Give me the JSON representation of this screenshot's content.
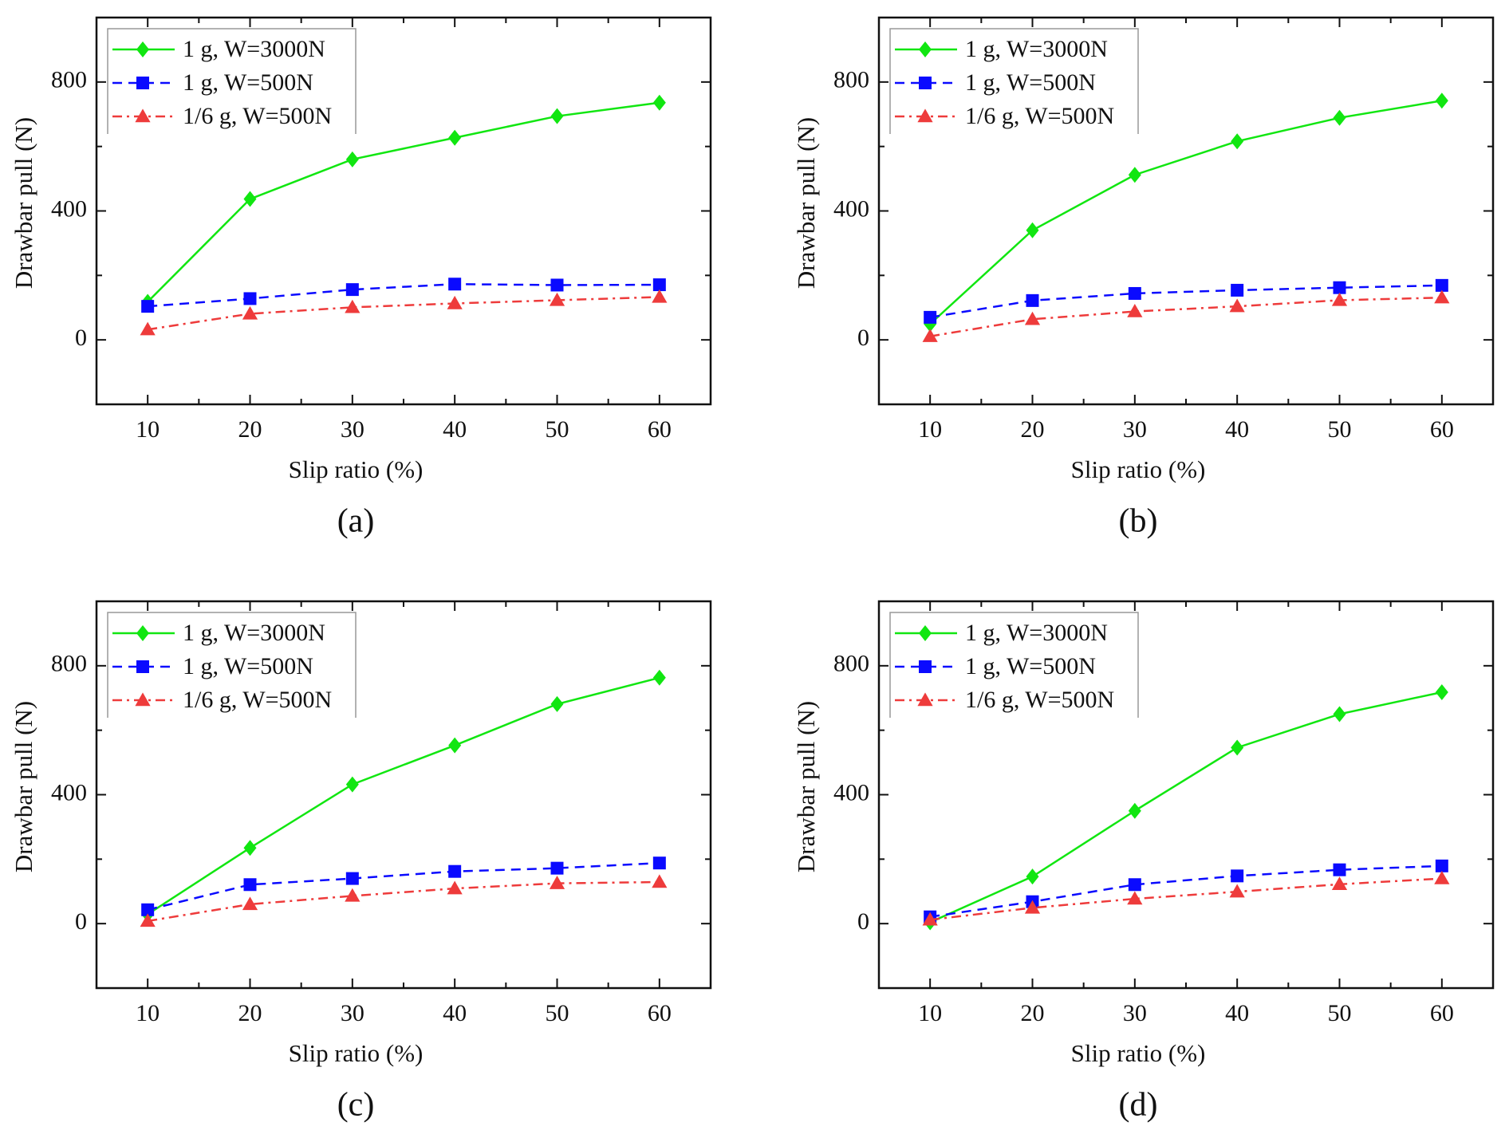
{
  "figure": {
    "description": "Drawbar pull versus slip ratio, four panels (a)-(d)"
  },
  "chart_data": [
    {
      "type": "line",
      "panel_label": "(a)",
      "xlabel": "Slip ratio (%)",
      "ylabel": "Drawbar pull (N)",
      "xlim": [
        5,
        65
      ],
      "ylim": [
        -200,
        1000
      ],
      "x_ticks": [
        10,
        20,
        30,
        40,
        50,
        60
      ],
      "x_minor_ticks": [
        15,
        25,
        35,
        45,
        55
      ],
      "y_ticks": [
        0,
        400,
        800
      ],
      "y_minor_ticks": [
        -200,
        200,
        600
      ],
      "grid": false,
      "legend_position": "top-left",
      "x": [
        10,
        20,
        30,
        40,
        50,
        60
      ],
      "series": [
        {
          "name": "1 g, W=3000N",
          "color": "#11e611",
          "marker": "diamond",
          "linestyle": "solid",
          "values": [
            118,
            437,
            560,
            627,
            694,
            736
          ]
        },
        {
          "name": "1 g, W=500N",
          "color": "#0a0aff",
          "marker": "square",
          "linestyle": "dashed",
          "values": [
            104,
            128,
            156,
            173,
            170,
            171
          ]
        },
        {
          "name": "1/6 g, W=500N",
          "color": "#ee3b3b",
          "marker": "triangle",
          "linestyle": "dash-dot",
          "values": [
            32,
            81,
            101,
            113,
            123,
            133
          ]
        }
      ]
    },
    {
      "type": "line",
      "panel_label": "(b)",
      "xlabel": "Slip ratio (%)",
      "ylabel": "Drawbar pull (N)",
      "xlim": [
        5,
        65
      ],
      "ylim": [
        -200,
        1000
      ],
      "x_ticks": [
        10,
        20,
        30,
        40,
        50,
        60
      ],
      "x_minor_ticks": [
        15,
        25,
        35,
        45,
        55
      ],
      "y_ticks": [
        0,
        400,
        800
      ],
      "y_minor_ticks": [
        -200,
        200,
        600
      ],
      "grid": false,
      "legend_position": "top-left",
      "x": [
        10,
        20,
        30,
        40,
        50,
        60
      ],
      "series": [
        {
          "name": "1 g, W=3000N",
          "color": "#11e611",
          "marker": "diamond",
          "linestyle": "solid",
          "values": [
            49,
            340,
            512,
            616,
            689,
            742
          ]
        },
        {
          "name": "1 g, W=500N",
          "color": "#0a0aff",
          "marker": "square",
          "linestyle": "dashed",
          "values": [
            70,
            122,
            144,
            154,
            162,
            169
          ]
        },
        {
          "name": "1/6 g, W=500N",
          "color": "#ee3b3b",
          "marker": "triangle",
          "linestyle": "dash-dot",
          "values": [
            11,
            64,
            88,
            104,
            123,
            131
          ]
        }
      ]
    },
    {
      "type": "line",
      "panel_label": "(c)",
      "xlabel": "Slip ratio (%)",
      "ylabel": "Drawbar pull (N)",
      "xlim": [
        5,
        65
      ],
      "ylim": [
        -200,
        1000
      ],
      "x_ticks": [
        10,
        20,
        30,
        40,
        50,
        60
      ],
      "x_minor_ticks": [
        15,
        25,
        35,
        45,
        55
      ],
      "y_ticks": [
        0,
        400,
        800
      ],
      "y_minor_ticks": [
        -200,
        200,
        600
      ],
      "grid": false,
      "legend_position": "top-left",
      "x": [
        10,
        20,
        30,
        40,
        50,
        60
      ],
      "series": [
        {
          "name": "1 g, W=3000N",
          "color": "#11e611",
          "marker": "diamond",
          "linestyle": "solid",
          "values": [
            29,
            235,
            432,
            553,
            681,
            763
          ]
        },
        {
          "name": "1 g, W=500N",
          "color": "#0a0aff",
          "marker": "square",
          "linestyle": "dashed",
          "values": [
            43,
            121,
            140,
            162,
            172,
            188
          ]
        },
        {
          "name": "1/6 g, W=500N",
          "color": "#ee3b3b",
          "marker": "triangle",
          "linestyle": "dash-dot",
          "values": [
            8,
            60,
            86,
            109,
            125,
            129
          ]
        }
      ]
    },
    {
      "type": "line",
      "panel_label": "(d)",
      "xlabel": "Slip ratio (%)",
      "ylabel": "Drawbar pull (N)",
      "xlim": [
        5,
        65
      ],
      "ylim": [
        -200,
        1000
      ],
      "x_ticks": [
        10,
        20,
        30,
        40,
        50,
        60
      ],
      "x_minor_ticks": [
        15,
        25,
        35,
        45,
        55
      ],
      "y_ticks": [
        0,
        400,
        800
      ],
      "y_minor_ticks": [
        -200,
        200,
        600
      ],
      "grid": false,
      "legend_position": "top-left",
      "x": [
        10,
        20,
        30,
        40,
        50,
        60
      ],
      "series": [
        {
          "name": "1 g, W=3000N",
          "color": "#11e611",
          "marker": "diamond",
          "linestyle": "solid",
          "values": [
            4,
            146,
            350,
            546,
            650,
            718
          ]
        },
        {
          "name": "1 g, W=500N",
          "color": "#0a0aff",
          "marker": "square",
          "linestyle": "dashed",
          "values": [
            21,
            68,
            121,
            148,
            167,
            179
          ]
        },
        {
          "name": "1/6 g, W=500N",
          "color": "#ee3b3b",
          "marker": "triangle",
          "linestyle": "dash-dot",
          "values": [
            12,
            49,
            77,
            99,
            122,
            140
          ]
        }
      ]
    }
  ]
}
